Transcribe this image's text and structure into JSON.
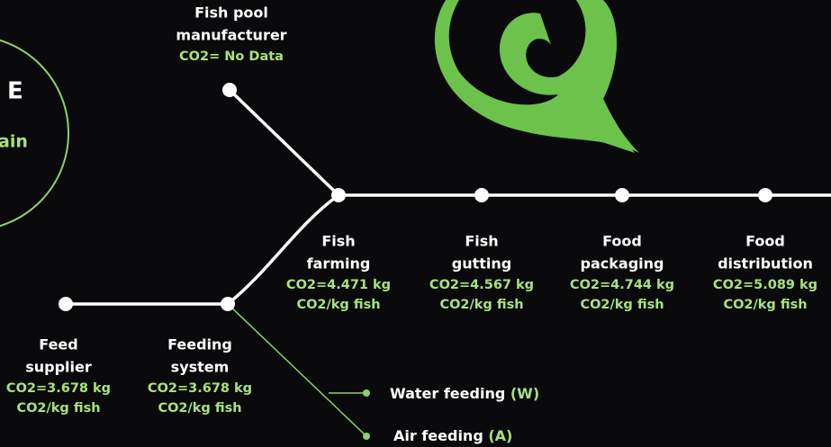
{
  "logo": {
    "letter": "E",
    "text": "ain"
  },
  "nodes": [
    {
      "label": [
        "Fish pool",
        "manufacturer"
      ],
      "co2": [
        "CO2= No Data"
      ]
    },
    {
      "label": [
        "Fish",
        "farming"
      ],
      "co2": [
        "CO2=4.471 kg",
        "CO2/kg fish"
      ]
    },
    {
      "label": [
        "Fish",
        "gutting"
      ],
      "co2": [
        "CO2=4.567 kg",
        "CO2/kg fish"
      ]
    },
    {
      "label": [
        "Food",
        "packaging"
      ],
      "co2": [
        "CO2=4.744 kg",
        "CO2/kg fish"
      ]
    },
    {
      "label": [
        "Food",
        "distribution"
      ],
      "co2": [
        "CO2=5.089 kg",
        "CO2/kg fish"
      ]
    },
    {
      "label": [
        "Feed",
        "supplier"
      ],
      "co2": [
        "CO2=3.678 kg",
        "CO2/kg fish"
      ]
    },
    {
      "label": [
        "Feeding",
        "system"
      ],
      "co2": [
        "CO2=3.678 kg",
        "CO2/kg fish"
      ]
    }
  ],
  "feeding_types": [
    {
      "name": "Water feeding",
      "code": "(W)"
    },
    {
      "name": "Air feeding",
      "code": "(A)"
    }
  ]
}
